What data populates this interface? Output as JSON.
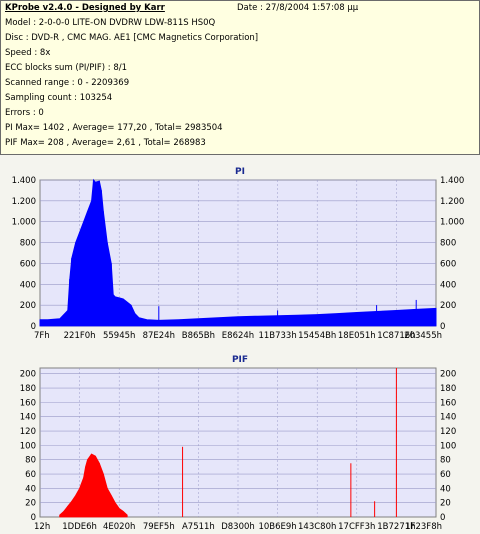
{
  "header": {
    "title": "KProbe v2.4.0 - Designed by Karr",
    "date": "Date : 27/8/2004 1:57:08 μμ"
  },
  "info_lines": [
    "Model : 2-0-0-0 LITE-ON DVDRW LDW-811S   HS0Q",
    "Disc : DVD-R ,  CMC MAG. AE1 [CMC Magnetics Corporation]",
    "Speed : 8x",
    "ECC blocks sum (PI/PIF) : 8/1",
    "Scanned range : 0 - 2209369",
    "Sampling count : 103254",
    "Errors : 0",
    "PI Max= 1402 , Average= 177,20 , Total= 2983504",
    "PIF Max= 208 , Average= 2,61 , Total= 268983"
  ],
  "colors": {
    "pi_series": "#0000ff",
    "pif_series": "#ff0000",
    "plot_background": "#e6e6fa",
    "grid": "#9a9ac8",
    "title": "#1a2a90"
  },
  "chart_data": [
    {
      "type": "area",
      "title": "PI",
      "x_tick_labels": [
        "7Fh",
        "221F0h",
        "55945h",
        "87E24h",
        "B865Bh",
        "E8624h",
        "11B733h",
        "15454Bh",
        "18E051h",
        "1C8716h",
        "203455h"
      ],
      "y_ticks": [
        0,
        200,
        400,
        600,
        800,
        1000,
        1200,
        1400
      ],
      "y_tick_labels": [
        "0",
        "200",
        "400",
        "600",
        "800",
        "1.000",
        "1.200",
        "1.400"
      ],
      "ylim": [
        0,
        1400
      ],
      "grid": true,
      "right_axis": true,
      "series": [
        {
          "x": [
            0,
            0.02,
            0.05,
            0.07,
            0.075,
            0.08,
            0.09,
            0.1,
            0.11,
            0.12,
            0.13,
            0.135,
            0.14,
            0.15,
            0.155,
            0.16,
            0.17,
            0.18,
            0.185,
            0.19,
            0.2,
            0.21,
            0.22,
            0.23,
            0.24,
            0.25,
            0.27,
            0.3,
            0.35,
            0.4,
            0.45,
            0.5,
            0.55,
            0.6,
            0.65,
            0.7,
            0.75,
            0.8,
            0.85,
            0.9,
            0.95,
            1.0
          ],
          "values": [
            60,
            60,
            70,
            150,
            450,
            650,
            800,
            900,
            1000,
            1100,
            1200,
            1402,
            1380,
            1390,
            1300,
            1100,
            800,
            600,
            300,
            280,
            270,
            260,
            230,
            200,
            120,
            80,
            60,
            55,
            60,
            70,
            80,
            90,
            95,
            100,
            105,
            110,
            120,
            130,
            140,
            150,
            160,
            170
          ]
        }
      ],
      "spikes": [
        {
          "x": 0.95,
          "value": 250
        },
        {
          "x": 0.85,
          "value": 200
        },
        {
          "x": 0.6,
          "value": 150
        },
        {
          "x": 0.3,
          "value": 190
        }
      ]
    },
    {
      "type": "bar",
      "title": "PIF",
      "x_tick_labels": [
        "12h",
        "1DDE6h",
        "4E020h",
        "79EF5h",
        "A7511h",
        "D8300h",
        "10B6E9h",
        "143C80h",
        "17CFF3h",
        "1B7271h",
        "1F23F8h"
      ],
      "y_ticks": [
        0,
        20,
        40,
        60,
        80,
        100,
        120,
        140,
        160,
        180,
        200
      ],
      "y_tick_labels": [
        "0",
        "20",
        "40",
        "60",
        "80",
        "100",
        "120",
        "140",
        "160",
        "180",
        "200"
      ],
      "ylim": [
        0,
        208
      ],
      "grid": true,
      "right_axis": true,
      "series": [
        {
          "x": [
            0.05,
            0.06,
            0.07,
            0.08,
            0.09,
            0.1,
            0.11,
            0.115,
            0.12,
            0.13,
            0.14,
            0.15,
            0.16,
            0.17,
            0.18,
            0.19,
            0.2,
            0.21,
            0.22
          ],
          "values": [
            3,
            8,
            15,
            22,
            30,
            40,
            55,
            70,
            80,
            88,
            85,
            75,
            60,
            40,
            30,
            20,
            12,
            8,
            3
          ]
        }
      ],
      "spikes": [
        {
          "x": 0.36,
          "value": 98
        },
        {
          "x": 0.785,
          "value": 75
        },
        {
          "x": 0.845,
          "value": 22
        },
        {
          "x": 0.9,
          "value": 208
        }
      ]
    }
  ]
}
